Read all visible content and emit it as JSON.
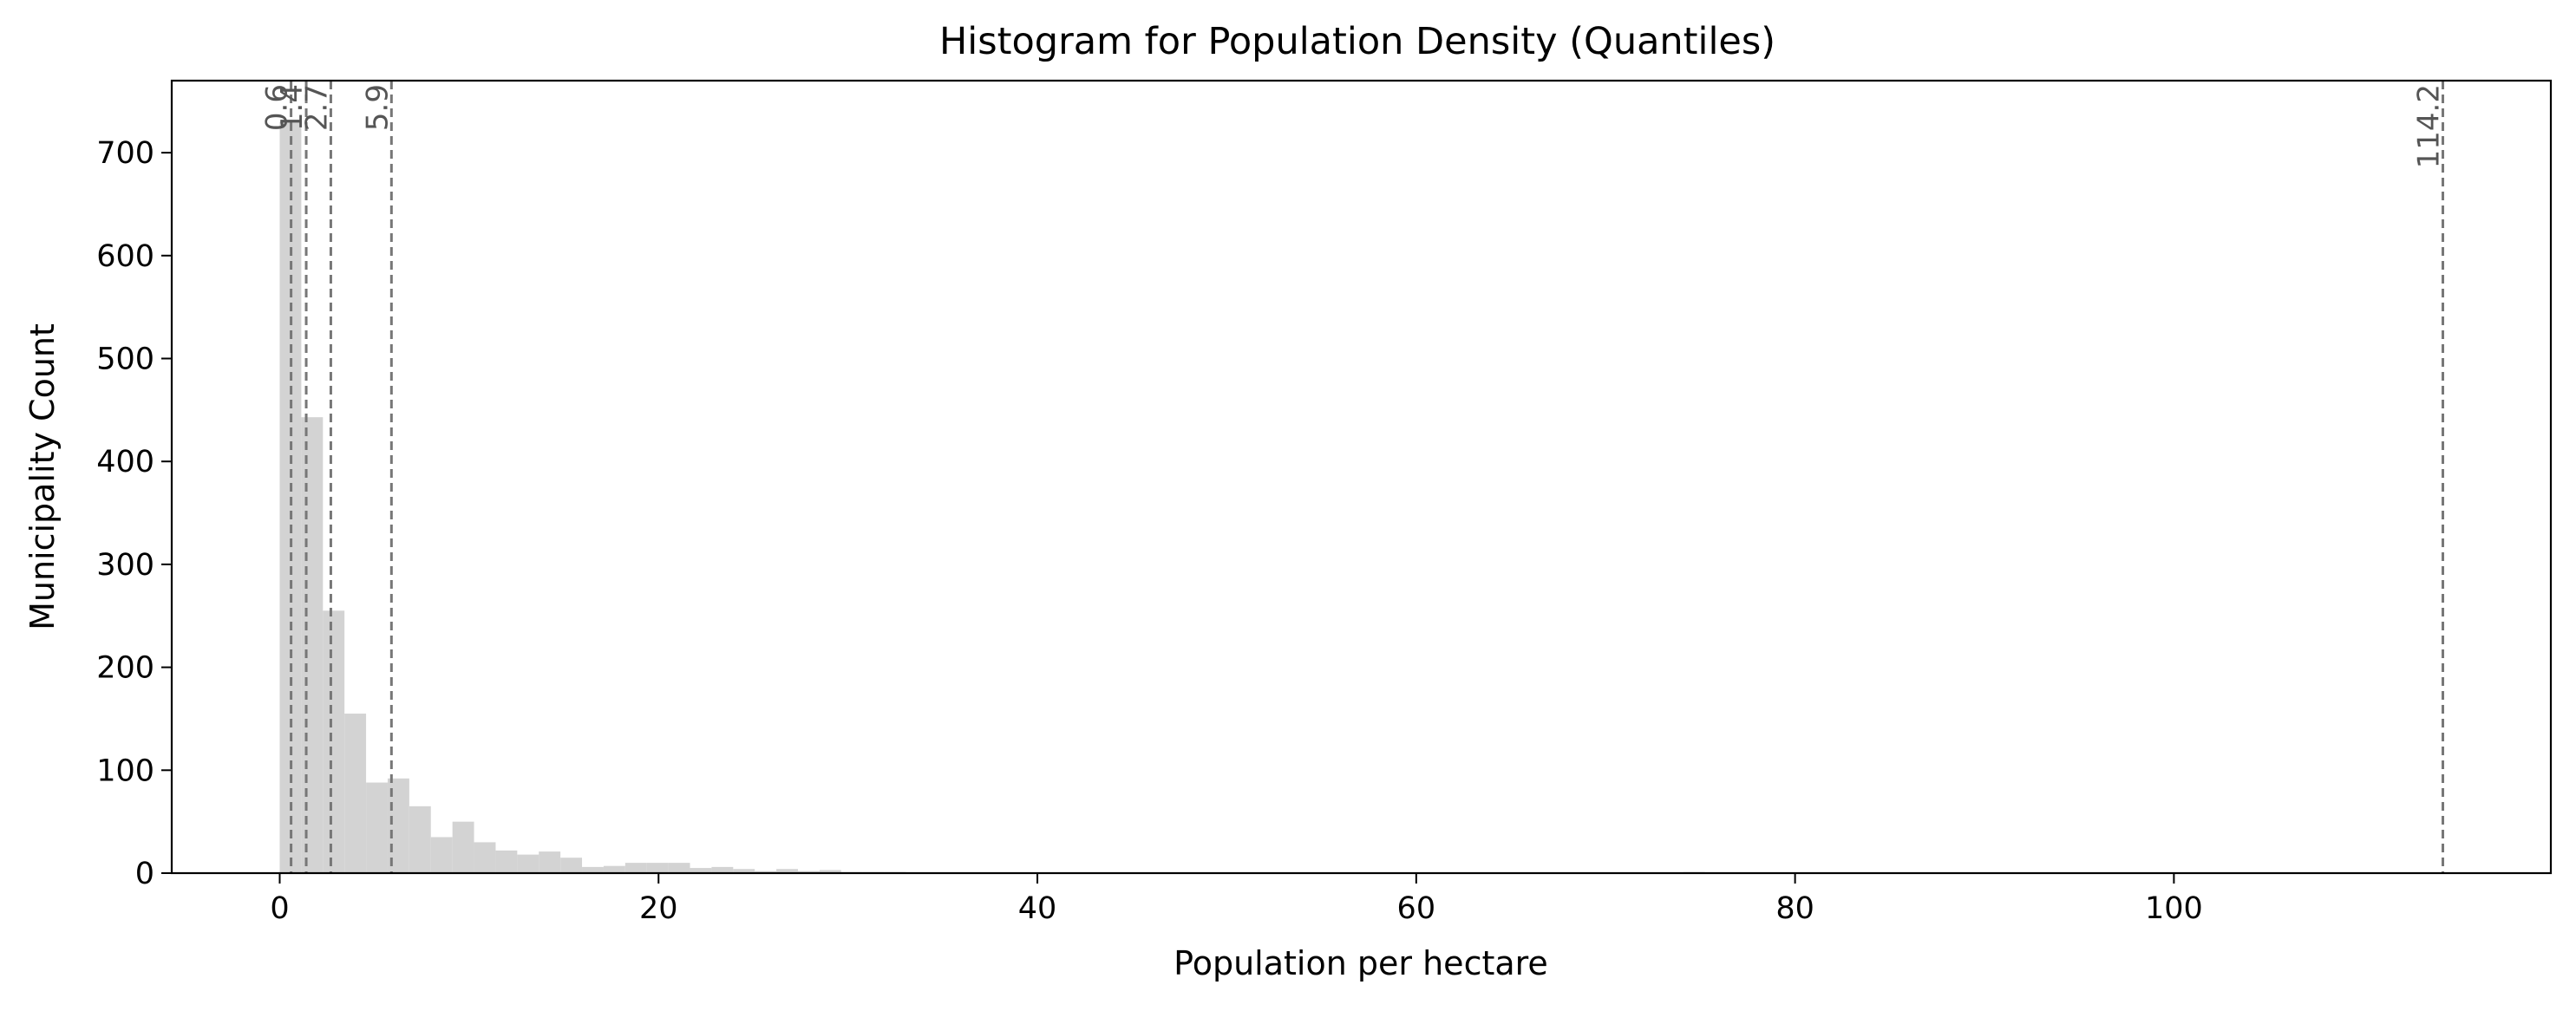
{
  "chart_data": {
    "type": "bar",
    "title": "Histogram for Population Density (Quantiles)",
    "xlabel": "Population per hectare",
    "ylabel": "Municipality Count",
    "xlim": [
      -5.7,
      119.9
    ],
    "ylim": [
      0,
      770
    ],
    "xticks": [
      0,
      20,
      40,
      60,
      80,
      100
    ],
    "yticks": [
      0,
      100,
      200,
      300,
      400,
      500,
      600,
      700
    ],
    "bin_width": 1.14,
    "bin_start": 0.0,
    "counts": [
      730,
      443,
      255,
      155,
      88,
      92,
      65,
      35,
      50,
      30,
      22,
      18,
      21,
      15,
      6,
      7,
      10,
      10,
      10,
      5,
      6,
      4,
      2,
      4,
      2,
      3,
      1,
      1,
      1,
      0,
      0,
      0,
      0,
      0,
      0,
      0,
      0,
      0,
      0,
      0,
      0,
      0,
      0,
      0,
      0,
      0,
      0,
      0,
      0,
      0,
      0,
      0,
      0,
      0,
      0,
      0,
      0,
      0,
      0,
      0,
      0,
      0,
      0,
      0,
      0,
      1,
      0,
      0,
      0,
      0,
      0,
      0,
      0,
      0,
      0,
      0,
      0,
      0,
      0,
      0,
      0,
      0,
      0,
      0,
      0,
      0,
      0,
      0,
      0,
      0,
      0,
      0,
      0,
      0,
      0,
      0,
      0,
      0,
      0,
      0
    ],
    "bar_color": "#d3d3d3",
    "quantile_lines": [
      {
        "value": 0.6,
        "label": "0.6"
      },
      {
        "value": 1.4,
        "label": "1.4"
      },
      {
        "value": 2.7,
        "label": "2.7"
      },
      {
        "value": 5.9,
        "label": "5.9"
      },
      {
        "value": 114.2,
        "label": "114.2"
      }
    ],
    "quantile_line_color": "#777777",
    "grid": false
  }
}
